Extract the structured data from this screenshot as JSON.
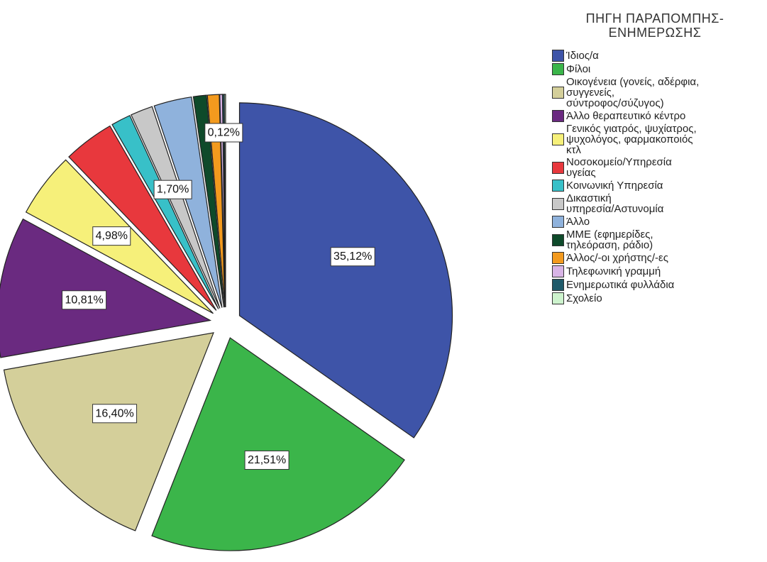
{
  "chart_data": {
    "type": "pie",
    "title": "",
    "legend_title": [
      "ΠΗΓΗ ΠΑΡΑΠΟΜΠΗΣ-",
      "ΕΝΗΜΕΡΩΣΗΣ"
    ],
    "legend_position": "right",
    "exploded": true,
    "slices": [
      {
        "label": "Ίδιος/α",
        "value": 35.12,
        "display": "35,12%",
        "color": "#3e54a8"
      },
      {
        "label": "Φίλοι",
        "value": 21.51,
        "display": "21,51%",
        "color": "#3bb54a"
      },
      {
        "label": "Οικογένεια (γονείς, αδέρφια,\nσυγγενείς,\nσύντροφος/σύζυγος)",
        "value": 16.4,
        "display": "16,40%",
        "color": "#d4cf9a"
      },
      {
        "label": "Άλλο θεραπευτικό κέντρο",
        "value": 10.81,
        "display": "10,81%",
        "color": "#6a2a80"
      },
      {
        "label": "Γενικός γιατρός, ψυχίατρος,\nψυχολόγος, φαρμακοποιός\nκτλ",
        "value": 4.98,
        "display": "4,98%",
        "color": "#f6f07a"
      },
      {
        "label": "Νοσοκομείο/Υπηρεσία\nυγείας",
        "value": 3.9,
        "display": "",
        "color": "#e8383d"
      },
      {
        "label": "Κοινωνική Υπηρεσία",
        "value": 1.5,
        "display": "",
        "color": "#38c0c8"
      },
      {
        "label": "Δικαστική\nυπηρεσία/Αστυνομία",
        "value": 1.7,
        "display": "1,70%",
        "color": "#c8c8c8"
      },
      {
        "label": "Άλλο",
        "value": 2.9,
        "display": "",
        "color": "#8fb2dc"
      },
      {
        "label": "ΜΜΕ (εφημερίδες,\nτηλεόραση, ράδιο)",
        "value": 1.0,
        "display": "",
        "color": "#0e4a2a"
      },
      {
        "label": "Άλλος/-οι χρήστης/-ες",
        "value": 0.9,
        "display": "",
        "color": "#f39a1e"
      },
      {
        "label": "Τηλεφωνική γραμμή",
        "value": 0.2,
        "display": "",
        "color": "#d8b4e6"
      },
      {
        "label": "Ενημερωτικά φυλλάδια",
        "value": 0.12,
        "display": "0,12%",
        "color": "#1f5a6a"
      },
      {
        "label": "Σχολείο",
        "value": 0.1,
        "display": "",
        "color": "#cdf3cd"
      }
    ]
  }
}
